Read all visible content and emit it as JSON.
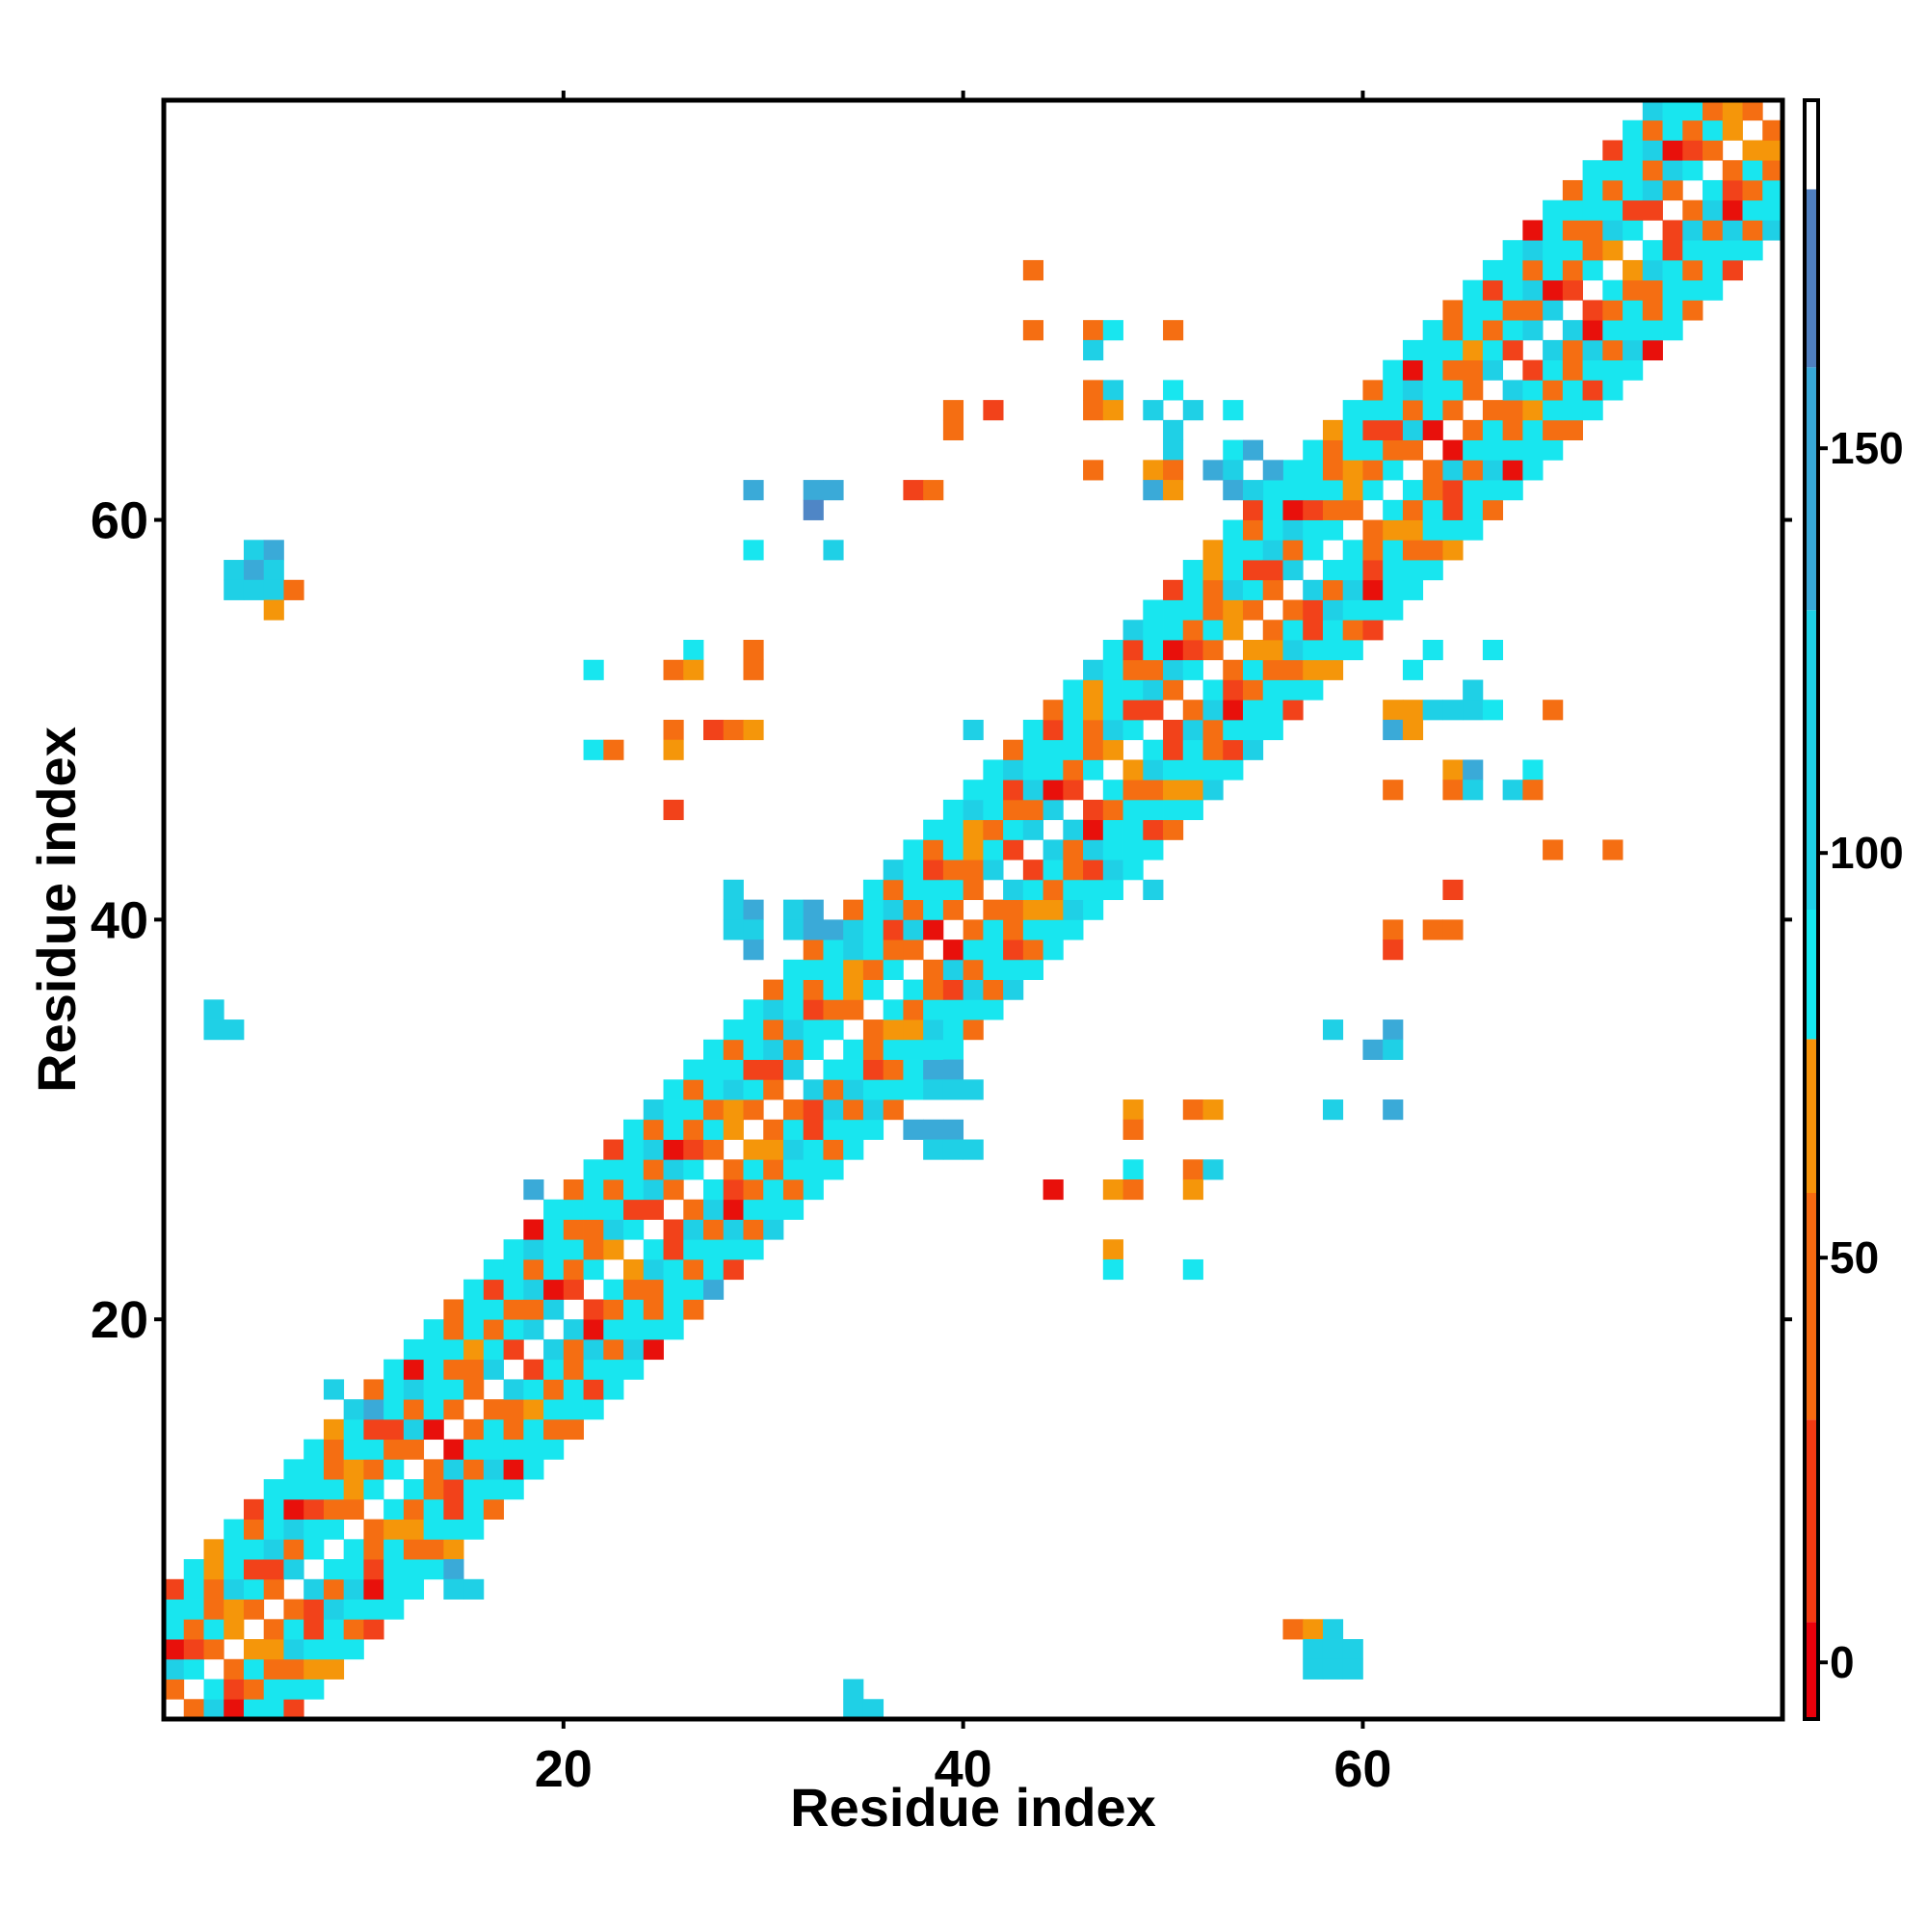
{
  "chart_data": {
    "type": "heatmap",
    "title": "",
    "xlabel": "Residue index",
    "ylabel": "Residue index",
    "x_range": [
      0,
      81
    ],
    "y_range": [
      0,
      81
    ],
    "x_ticks": [
      20,
      40,
      60
    ],
    "y_ticks": [
      20,
      40,
      60
    ],
    "grid": false,
    "colorbar": {
      "position": "right",
      "ticks": [
        0,
        50,
        100,
        150
      ],
      "range": [
        -7,
        193
      ],
      "bands": [
        {
          "from": -7,
          "to": 5,
          "color": "#e8000b"
        },
        {
          "from": 5,
          "to": 30,
          "color": "#f23a12"
        },
        {
          "from": 30,
          "to": 58,
          "color": "#f56a10"
        },
        {
          "from": 58,
          "to": 77,
          "color": "#f5920a"
        },
        {
          "from": 77,
          "to": 93,
          "color": "#15e8f0"
        },
        {
          "from": 93,
          "to": 130,
          "color": "#1fd0e6"
        },
        {
          "from": 130,
          "to": 160,
          "color": "#38a8d8"
        },
        {
          "from": 160,
          "to": 182,
          "color": "#4f7fbf"
        },
        {
          "from": 182,
          "to": 193,
          "color": "#ffffff"
        }
      ]
    },
    "palette": {
      "R": "#e8100b",
      "r": "#f2421a",
      "o": "#f56e12",
      "y": "#f5960a",
      "c": "#18e6ef",
      "t": "#1fd0e6",
      "b": "#3aaad8",
      "d": "#4f86c6"
    },
    "diagonal_period_code": "oyotcocrtcoroctcotcyroocR",
    "off_diagonal_cells": [
      [
        5,
        59,
        "t"
      ],
      [
        6,
        59,
        "b"
      ],
      [
        4,
        58,
        "t"
      ],
      [
        5,
        58,
        "b"
      ],
      [
        6,
        58,
        "t"
      ],
      [
        4,
        57,
        "t"
      ],
      [
        5,
        57,
        "t"
      ],
      [
        6,
        57,
        "t"
      ],
      [
        7,
        57,
        "o"
      ],
      [
        6,
        56,
        "y"
      ],
      [
        3,
        36,
        "t"
      ],
      [
        3,
        35,
        "t"
      ],
      [
        4,
        35,
        "t"
      ],
      [
        9,
        17,
        "t"
      ],
      [
        10,
        16,
        "t"
      ],
      [
        11,
        16,
        "b"
      ],
      [
        15,
        8,
        "b"
      ],
      [
        15,
        7,
        "t"
      ],
      [
        16,
        7,
        "t"
      ],
      [
        35,
        2,
        "t"
      ],
      [
        35,
        1,
        "t"
      ],
      [
        36,
        1,
        "t"
      ],
      [
        57,
        5,
        "o"
      ],
      [
        58,
        5,
        "y"
      ],
      [
        59,
        5,
        "t"
      ],
      [
        58,
        4,
        "t"
      ],
      [
        59,
        4,
        "t"
      ],
      [
        60,
        4,
        "t"
      ],
      [
        58,
        3,
        "t"
      ],
      [
        59,
        3,
        "t"
      ],
      [
        60,
        3,
        "t"
      ],
      [
        44,
        73,
        "o"
      ],
      [
        44,
        70,
        "o"
      ],
      [
        47,
        70,
        "o"
      ],
      [
        48,
        70,
        "c"
      ],
      [
        51,
        70,
        "o"
      ],
      [
        47,
        69,
        "t"
      ],
      [
        47,
        67,
        "o"
      ],
      [
        48,
        67,
        "t"
      ],
      [
        47,
        66,
        "o"
      ],
      [
        48,
        66,
        "y"
      ],
      [
        51,
        67,
        "c"
      ],
      [
        50,
        66,
        "t"
      ],
      [
        52,
        66,
        "t"
      ],
      [
        54,
        66,
        "c"
      ],
      [
        40,
        66,
        "o"
      ],
      [
        40,
        65,
        "o"
      ],
      [
        42,
        66,
        "r"
      ],
      [
        51,
        65,
        "t"
      ],
      [
        51,
        64,
        "t"
      ],
      [
        54,
        64,
        "c"
      ],
      [
        55,
        64,
        "b"
      ],
      [
        47,
        63,
        "o"
      ],
      [
        50,
        63,
        "y"
      ],
      [
        51,
        63,
        "o"
      ],
      [
        53,
        63,
        "b"
      ],
      [
        54,
        63,
        "t"
      ],
      [
        56,
        63,
        "b"
      ],
      [
        58,
        63,
        "c"
      ],
      [
        30,
        62,
        "b"
      ],
      [
        33,
        62,
        "b"
      ],
      [
        34,
        62,
        "b"
      ],
      [
        38,
        62,
        "r"
      ],
      [
        39,
        62,
        "o"
      ],
      [
        50,
        62,
        "b"
      ],
      [
        51,
        62,
        "y"
      ],
      [
        54,
        62,
        "b"
      ],
      [
        55,
        62,
        "t"
      ],
      [
        33,
        61,
        "d"
      ],
      [
        30,
        59,
        "c"
      ],
      [
        34,
        59,
        "t"
      ],
      [
        22,
        53,
        "c"
      ],
      [
        27,
        54,
        "c"
      ],
      [
        26,
        53,
        "o"
      ],
      [
        27,
        53,
        "y"
      ],
      [
        30,
        54,
        "o"
      ],
      [
        30,
        53,
        "o"
      ],
      [
        22,
        49,
        "c"
      ],
      [
        23,
        49,
        "o"
      ],
      [
        26,
        50,
        "o"
      ],
      [
        26,
        49,
        "y"
      ],
      [
        28,
        50,
        "r"
      ],
      [
        29,
        50,
        "o"
      ],
      [
        30,
        50,
        "y"
      ],
      [
        26,
        46,
        "r"
      ],
      [
        41,
        50,
        "t"
      ],
      [
        49,
        43,
        "c"
      ],
      [
        50,
        42,
        "t"
      ],
      [
        29,
        42,
        "t"
      ],
      [
        29,
        41,
        "t"
      ],
      [
        30,
        41,
        "b"
      ],
      [
        29,
        40,
        "t"
      ],
      [
        30,
        40,
        "t"
      ],
      [
        30,
        39,
        "b"
      ],
      [
        32,
        41,
        "t"
      ],
      [
        33,
        41,
        "b"
      ],
      [
        32,
        40,
        "t"
      ],
      [
        33,
        40,
        "b"
      ],
      [
        34,
        40,
        "b"
      ],
      [
        35,
        40,
        "t"
      ],
      [
        39,
        33,
        "b"
      ],
      [
        40,
        33,
        "b"
      ],
      [
        39,
        32,
        "t"
      ],
      [
        40,
        32,
        "t"
      ],
      [
        41,
        32,
        "t"
      ],
      [
        38,
        30,
        "b"
      ],
      [
        39,
        30,
        "b"
      ],
      [
        40,
        30,
        "b"
      ],
      [
        39,
        29,
        "t"
      ],
      [
        40,
        29,
        "t"
      ],
      [
        41,
        29,
        "t"
      ],
      [
        19,
        27,
        "b"
      ],
      [
        28,
        22,
        "b"
      ],
      [
        62,
        51,
        "y"
      ],
      [
        63,
        51,
        "y"
      ],
      [
        64,
        51,
        "t"
      ],
      [
        65,
        51,
        "t"
      ],
      [
        66,
        51,
        "t"
      ],
      [
        67,
        51,
        "c"
      ],
      [
        70,
        51,
        "o"
      ],
      [
        62,
        50,
        "b"
      ],
      [
        63,
        50,
        "y"
      ],
      [
        66,
        52,
        "t"
      ],
      [
        63,
        53,
        "c"
      ],
      [
        64,
        54,
        "c"
      ],
      [
        67,
        54,
        "c"
      ],
      [
        62,
        47,
        "o"
      ],
      [
        65,
        48,
        "y"
      ],
      [
        65,
        47,
        "o"
      ],
      [
        66,
        48,
        "b"
      ],
      [
        66,
        47,
        "t"
      ],
      [
        68,
        47,
        "t"
      ],
      [
        69,
        48,
        "c"
      ],
      [
        69,
        47,
        "o"
      ],
      [
        70,
        44,
        "o"
      ],
      [
        73,
        44,
        "o"
      ],
      [
        65,
        42,
        "r"
      ],
      [
        62,
        40,
        "o"
      ],
      [
        62,
        39,
        "r"
      ],
      [
        64,
        40,
        "o"
      ],
      [
        65,
        40,
        "o"
      ],
      [
        59,
        35,
        "t"
      ],
      [
        62,
        35,
        "b"
      ],
      [
        61,
        34,
        "b"
      ],
      [
        62,
        34,
        "t"
      ],
      [
        59,
        31,
        "t"
      ],
      [
        62,
        31,
        "b"
      ],
      [
        49,
        31,
        "y"
      ],
      [
        49,
        30,
        "o"
      ],
      [
        52,
        31,
        "o"
      ],
      [
        53,
        31,
        "y"
      ],
      [
        49,
        28,
        "c"
      ],
      [
        52,
        28,
        "o"
      ],
      [
        53,
        28,
        "t"
      ],
      [
        45,
        27,
        "R"
      ],
      [
        48,
        27,
        "y"
      ],
      [
        49,
        27,
        "o"
      ],
      [
        52,
        27,
        "y"
      ],
      [
        48,
        24,
        "y"
      ],
      [
        48,
        23,
        "c"
      ],
      [
        52,
        23,
        "c"
      ]
    ]
  }
}
